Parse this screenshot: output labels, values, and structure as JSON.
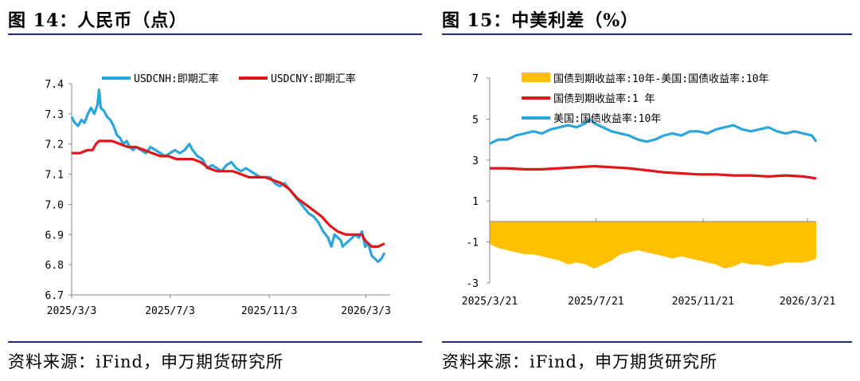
{
  "left_panel": {
    "title": "图 14：人民币（点）",
    "source": "资料来源：iFind，申万期货研究所"
  },
  "right_panel": {
    "title": "图 15：中美利差（%）",
    "source": "资料来源：iFind，申万期货研究所"
  },
  "chart_data": [
    {
      "type": "line",
      "title": "人民币（点）",
      "ylim": [
        6.7,
        7.4
      ],
      "yticks": [
        "7.4",
        "7.3",
        "7.2",
        "7.1",
        "7.0",
        "6.9",
        "6.8",
        "6.7"
      ],
      "xlim": [
        0,
        395
      ],
      "xticks": [
        {
          "label": "2025/3/3",
          "day": 0
        },
        {
          "label": "2025/7/3",
          "day": 122
        },
        {
          "label": "2025/11/3",
          "day": 245
        },
        {
          "label": "2026/3/3",
          "day": 365
        }
      ],
      "legend_position": "top",
      "series": [
        {
          "name": "USDCNH:即期汇率",
          "color": "#2aa6dc",
          "points": [
            [
              0,
              7.29
            ],
            [
              4,
              7.27
            ],
            [
              8,
              7.26
            ],
            [
              12,
              7.28
            ],
            [
              16,
              7.27
            ],
            [
              20,
              7.3
            ],
            [
              24,
              7.32
            ],
            [
              28,
              7.3
            ],
            [
              32,
              7.33
            ],
            [
              34,
              7.38
            ],
            [
              36,
              7.32
            ],
            [
              40,
              7.31
            ],
            [
              44,
              7.29
            ],
            [
              48,
              7.28
            ],
            [
              52,
              7.26
            ],
            [
              56,
              7.23
            ],
            [
              60,
              7.22
            ],
            [
              64,
              7.2
            ],
            [
              68,
              7.21
            ],
            [
              72,
              7.19
            ],
            [
              76,
              7.18
            ],
            [
              80,
              7.19
            ],
            [
              86,
              7.18
            ],
            [
              92,
              7.17
            ],
            [
              98,
              7.19
            ],
            [
              104,
              7.18
            ],
            [
              110,
              7.17
            ],
            [
              116,
              7.16
            ],
            [
              122,
              7.17
            ],
            [
              128,
              7.18
            ],
            [
              134,
              7.17
            ],
            [
              140,
              7.18
            ],
            [
              146,
              7.2
            ],
            [
              150,
              7.18
            ],
            [
              156,
              7.16
            ],
            [
              162,
              7.15
            ],
            [
              168,
              7.12
            ],
            [
              174,
              7.13
            ],
            [
              180,
              7.12
            ],
            [
              186,
              7.11
            ],
            [
              192,
              7.13
            ],
            [
              198,
              7.14
            ],
            [
              204,
              7.12
            ],
            [
              210,
              7.11
            ],
            [
              216,
              7.12
            ],
            [
              222,
              7.11
            ],
            [
              228,
              7.1
            ],
            [
              234,
              7.09
            ],
            [
              240,
              7.09
            ],
            [
              246,
              7.09
            ],
            [
              252,
              7.07
            ],
            [
              258,
              7.06
            ],
            [
              264,
              7.07
            ],
            [
              270,
              7.05
            ],
            [
              276,
              7.03
            ],
            [
              282,
              7.01
            ],
            [
              288,
              6.99
            ],
            [
              294,
              6.97
            ],
            [
              300,
              6.96
            ],
            [
              306,
              6.94
            ],
            [
              312,
              6.91
            ],
            [
              318,
              6.89
            ],
            [
              322,
              6.86
            ],
            [
              326,
              6.9
            ],
            [
              330,
              6.89
            ],
            [
              334,
              6.88
            ],
            [
              336,
              6.86
            ],
            [
              340,
              6.87
            ],
            [
              344,
              6.88
            ],
            [
              348,
              6.89
            ],
            [
              352,
              6.9
            ],
            [
              356,
              6.89
            ],
            [
              360,
              6.91
            ],
            [
              364,
              6.86
            ],
            [
              368,
              6.87
            ],
            [
              372,
              6.83
            ],
            [
              376,
              6.82
            ],
            [
              380,
              6.81
            ],
            [
              384,
              6.82
            ],
            [
              388,
              6.84
            ]
          ]
        },
        {
          "name": "USDCNY:即期汇率",
          "color": "#e4141b",
          "points": [
            [
              0,
              7.17
            ],
            [
              10,
              7.17
            ],
            [
              20,
              7.18
            ],
            [
              26,
              7.18
            ],
            [
              30,
              7.2
            ],
            [
              34,
              7.21
            ],
            [
              40,
              7.21
            ],
            [
              50,
              7.21
            ],
            [
              60,
              7.2
            ],
            [
              70,
              7.19
            ],
            [
              80,
              7.19
            ],
            [
              90,
              7.18
            ],
            [
              100,
              7.17
            ],
            [
              110,
              7.16
            ],
            [
              120,
              7.16
            ],
            [
              130,
              7.15
            ],
            [
              140,
              7.15
            ],
            [
              150,
              7.15
            ],
            [
              160,
              7.14
            ],
            [
              170,
              7.12
            ],
            [
              180,
              7.11
            ],
            [
              190,
              7.11
            ],
            [
              200,
              7.11
            ],
            [
              210,
              7.1
            ],
            [
              220,
              7.09
            ],
            [
              230,
              7.09
            ],
            [
              240,
              7.09
            ],
            [
              250,
              7.08
            ],
            [
              260,
              7.07
            ],
            [
              270,
              7.05
            ],
            [
              280,
              7.02
            ],
            [
              290,
              7.0
            ],
            [
              300,
              6.98
            ],
            [
              310,
              6.96
            ],
            [
              320,
              6.93
            ],
            [
              330,
              6.91
            ],
            [
              340,
              6.9
            ],
            [
              350,
              6.9
            ],
            [
              360,
              6.9
            ],
            [
              364,
              6.88
            ],
            [
              368,
              6.87
            ],
            [
              372,
              6.86
            ],
            [
              380,
              6.86
            ],
            [
              388,
              6.87
            ]
          ]
        }
      ]
    },
    {
      "type": "area+line",
      "title": "中美利差（%）",
      "ylim": [
        -3,
        7
      ],
      "yticks": [
        "7",
        "5",
        "3",
        "1",
        "-1",
        "-3"
      ],
      "xlim": [
        0,
        375
      ],
      "xticks": [
        {
          "label": "2025/3/21",
          "day": 0
        },
        {
          "label": "2025/7/21",
          "day": 122
        },
        {
          "label": "2025/11/21",
          "day": 245
        },
        {
          "label": "2026/3/21",
          "day": 365
        }
      ],
      "legend_position": "top-left",
      "series": [
        {
          "name": "国债到期收益率:10年-美国:国债收益率:10年",
          "kind": "area",
          "color": "#ffc000",
          "points": [
            [
              0,
              -1.1
            ],
            [
              10,
              -1.3
            ],
            [
              20,
              -1.4
            ],
            [
              30,
              -1.5
            ],
            [
              40,
              -1.6
            ],
            [
              50,
              -1.6
            ],
            [
              60,
              -1.7
            ],
            [
              70,
              -1.8
            ],
            [
              80,
              -1.9
            ],
            [
              90,
              -2.1
            ],
            [
              100,
              -2.0
            ],
            [
              110,
              -2.1
            ],
            [
              120,
              -2.3
            ],
            [
              130,
              -2.1
            ],
            [
              140,
              -1.9
            ],
            [
              150,
              -1.6
            ],
            [
              160,
              -1.5
            ],
            [
              170,
              -1.4
            ],
            [
              180,
              -1.5
            ],
            [
              190,
              -1.6
            ],
            [
              200,
              -1.7
            ],
            [
              210,
              -1.8
            ],
            [
              220,
              -1.7
            ],
            [
              230,
              -1.8
            ],
            [
              240,
              -1.9
            ],
            [
              250,
              -2.0
            ],
            [
              260,
              -2.1
            ],
            [
              270,
              -2.3
            ],
            [
              280,
              -2.2
            ],
            [
              290,
              -2.0
            ],
            [
              300,
              -2.1
            ],
            [
              310,
              -2.1
            ],
            [
              320,
              -2.2
            ],
            [
              330,
              -2.1
            ],
            [
              340,
              -2.0
            ],
            [
              350,
              -2.0
            ],
            [
              360,
              -2.0
            ],
            [
              370,
              -1.9
            ],
            [
              375,
              -1.8
            ]
          ]
        },
        {
          "name": "国债到期收益率:1 年",
          "kind": "line",
          "color": "#e4141b",
          "points": [
            [
              0,
              2.6
            ],
            [
              20,
              2.6
            ],
            [
              40,
              2.55
            ],
            [
              60,
              2.55
            ],
            [
              80,
              2.6
            ],
            [
              100,
              2.65
            ],
            [
              120,
              2.7
            ],
            [
              140,
              2.65
            ],
            [
              160,
              2.6
            ],
            [
              180,
              2.5
            ],
            [
              200,
              2.4
            ],
            [
              220,
              2.35
            ],
            [
              240,
              2.3
            ],
            [
              260,
              2.3
            ],
            [
              280,
              2.25
            ],
            [
              300,
              2.25
            ],
            [
              320,
              2.2
            ],
            [
              340,
              2.25
            ],
            [
              360,
              2.2
            ],
            [
              375,
              2.1
            ]
          ]
        },
        {
          "name": "美国:国债收益率:10年",
          "kind": "line",
          "color": "#2aa6dc",
          "points": [
            [
              0,
              3.8
            ],
            [
              10,
              4.0
            ],
            [
              20,
              4.0
            ],
            [
              30,
              4.2
            ],
            [
              40,
              4.3
            ],
            [
              50,
              4.4
            ],
            [
              60,
              4.3
            ],
            [
              70,
              4.5
            ],
            [
              80,
              4.6
            ],
            [
              90,
              4.7
            ],
            [
              100,
              4.6
            ],
            [
              110,
              4.8
            ],
            [
              115,
              5.0
            ],
            [
              120,
              4.8
            ],
            [
              130,
              4.6
            ],
            [
              140,
              4.4
            ],
            [
              150,
              4.3
            ],
            [
              160,
              4.2
            ],
            [
              170,
              4.0
            ],
            [
              180,
              3.9
            ],
            [
              190,
              4.0
            ],
            [
              200,
              4.2
            ],
            [
              210,
              4.3
            ],
            [
              220,
              4.2
            ],
            [
              230,
              4.4
            ],
            [
              240,
              4.4
            ],
            [
              250,
              4.3
            ],
            [
              260,
              4.5
            ],
            [
              270,
              4.6
            ],
            [
              280,
              4.7
            ],
            [
              290,
              4.5
            ],
            [
              300,
              4.4
            ],
            [
              310,
              4.5
            ],
            [
              320,
              4.6
            ],
            [
              330,
              4.4
            ],
            [
              340,
              4.3
            ],
            [
              350,
              4.4
            ],
            [
              360,
              4.3
            ],
            [
              370,
              4.2
            ],
            [
              375,
              3.9
            ]
          ]
        }
      ]
    }
  ]
}
